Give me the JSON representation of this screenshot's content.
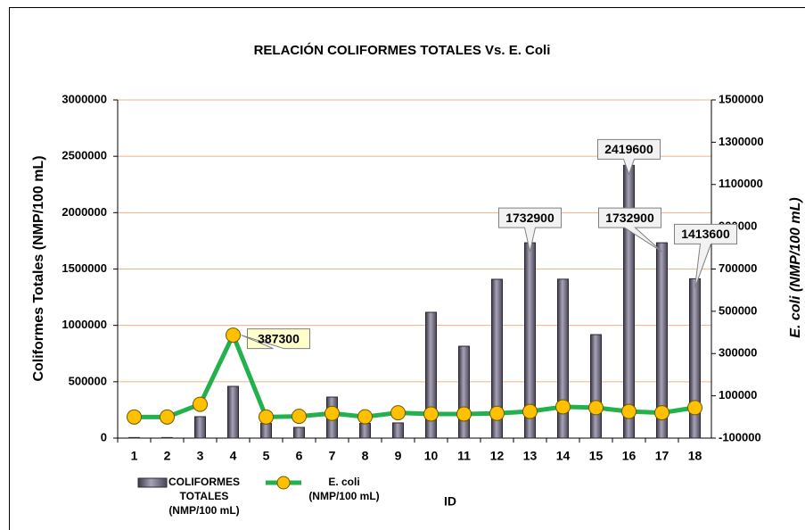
{
  "chart_data": {
    "type": "bar-line",
    "title": "RELACIÓN COLIFORMES TOTALES Vs. E. Coli",
    "x_label": "ID",
    "y_label": "Coliformes Totales (NMP/100 mL)",
    "y2_label": "E. coli (NMP/100 mL)",
    "categories": [
      "1",
      "2",
      "3",
      "4",
      "5",
      "6",
      "7",
      "8",
      "9",
      "10",
      "11",
      "12",
      "13",
      "14",
      "15",
      "16",
      "17",
      "18"
    ],
    "ylim": [
      0,
      3000000
    ],
    "yticks": [
      0,
      500000,
      1000000,
      1500000,
      2000000,
      2500000,
      3000000
    ],
    "y2lim": [
      -100000,
      1500000
    ],
    "y2ticks": [
      -100000,
      100000,
      300000,
      500000,
      700000,
      900000,
      1100000,
      1300000,
      1500000
    ],
    "grid": true,
    "series": [
      {
        "name": "COLIFORMES TOTALES (NMP/100 mL)",
        "type": "bar",
        "color": "#5f5a6e",
        "values": [
          5000,
          5000,
          190000,
          459000,
          130000,
          95000,
          364000,
          130000,
          135000,
          1116000,
          815000,
          1409000,
          1732900,
          1410000,
          918000,
          2419600,
          1732900,
          1413600
        ],
        "value_labels": [
          null,
          null,
          null,
          null,
          null,
          null,
          null,
          null,
          null,
          null,
          null,
          null,
          "1732900",
          null,
          null,
          "2419600",
          "1732900",
          "1413600"
        ]
      },
      {
        "name": "E. coli (NMP/100 mL)",
        "type": "line",
        "axis": "y2",
        "color": "#22b14c",
        "marker_color": "#ffc000",
        "values": [
          0,
          0,
          60000,
          387300,
          0,
          3000,
          17000,
          1000,
          20000,
          14000,
          14000,
          17000,
          26000,
          48000,
          44000,
          26000,
          20000,
          44000
        ],
        "value_labels": [
          null,
          null,
          null,
          "387300",
          null,
          null,
          null,
          null,
          null,
          null,
          null,
          null,
          null,
          null,
          null,
          null,
          null,
          null
        ]
      }
    ]
  }
}
